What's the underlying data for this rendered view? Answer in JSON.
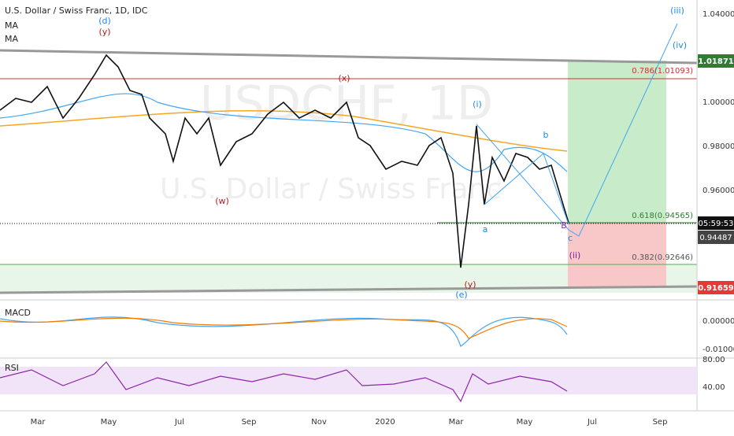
{
  "header": {
    "symbol": "U.S. Dollar / Swiss Franc, 1D, IDC",
    "indicators": [
      "MA",
      "MA"
    ]
  },
  "watermark": {
    "ticker": "USDCHF, 1D",
    "name": "U.S. Dollar / Swiss Franc"
  },
  "price_axis": [
    "1.04000",
    "1.00000",
    "0.98000",
    "0.96000"
  ],
  "price_badges": [
    "1.01871",
    "05:59:53",
    "0.94487",
    "0.91659"
  ],
  "fib_levels": [
    "0.786(1.01093)",
    "0.618(0.94565)",
    "0.382(0.92646)"
  ],
  "wave_labels": [
    "(iii)",
    "(iv)",
    "(d)",
    "(y)",
    "(x)",
    "(i)",
    "(w)",
    "b",
    "a",
    "B",
    "c",
    "(ii)",
    "(y)",
    "(e)"
  ],
  "macd": {
    "title": "MACD",
    "ticks": [
      "0.00000",
      "-0.01000"
    ]
  },
  "rsi": {
    "title": "RSI",
    "ticks": [
      "80.00",
      "40.00"
    ]
  },
  "time_axis": [
    "Mar",
    "May",
    "Jul",
    "Sep",
    "Nov",
    "2020",
    "Mar",
    "May",
    "Jul",
    "Sep"
  ]
}
